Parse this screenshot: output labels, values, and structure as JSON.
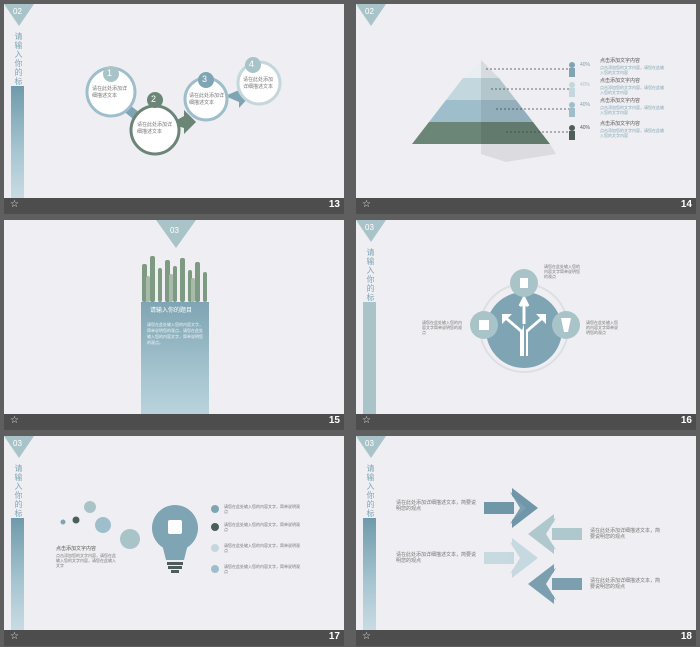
{
  "slides": [
    {
      "number": "13",
      "section": "02",
      "title": "请输入你的标题",
      "steps": [
        {
          "n": "1",
          "text": "请在此处添加详细描述文本"
        },
        {
          "n": "2",
          "text": "请在此处添加详细描述文本"
        },
        {
          "n": "3",
          "text": "请在此处添加详细描述文本"
        },
        {
          "n": "4",
          "text": "请在此处添加详细描述文本"
        }
      ]
    },
    {
      "number": "14",
      "section": "02",
      "title": "请输入你的标题",
      "levels": [
        {
          "pct": "40%",
          "heading": "点击添加文字内容",
          "desc": "点击添加您的文字内容，请您在此输入您的文字内容"
        },
        {
          "pct": "40%",
          "heading": "点击添加文字内容",
          "desc": "点击添加您的文字内容，请您在此输入您的文字内容"
        },
        {
          "pct": "40%",
          "heading": "点击添加文字内容",
          "desc": "点击添加您的文字内容，请您在此输入您的文字内容"
        },
        {
          "pct": "40%",
          "heading": "点击添加文字内容",
          "desc": "点击添加您的文字内容，请您在此输入您的文字内容"
        }
      ]
    },
    {
      "number": "15",
      "section": "03",
      "panel_title": "请输入你的题目",
      "panel_text": "请您在此处输入您的内容文字，简单说明您的观点，请您在此处输入您的内容文字，简单说明您的观点。"
    },
    {
      "number": "16",
      "section": "03",
      "title": "请输入你的标题",
      "text_right_top": "请您在此处输入您的内容文字简单说明您的观点",
      "text_left": "请您在此处输入您的内容文字简单说明您的观点",
      "text_right": "请您在此处输入您的内容文字简单说明您的观点"
    },
    {
      "number": "17",
      "section": "03",
      "title": "请输入你的标题",
      "left_heading": "点击添加文字内容",
      "left_text": "点击添加您的文字内容，请您在此输入您的文字内容，请您在此输入文字",
      "items": [
        "请您在此处输入您的内容文字，简单说明观点",
        "请您在此处输入您的内容文字，简单说明观点",
        "请您在此处输入您的内容文字，简单说明观点",
        "请您在此处输入您的内容文字，简单说明观点"
      ]
    },
    {
      "number": "18",
      "section": "03",
      "title": "请输入你的标题",
      "texts": [
        "请在此处添加详细描述文本，简要说明您的观点",
        "请在此处添加详细描述文本，简要说明您的观点",
        "请在此处添加详细描述文本，简要说明您的观点",
        "请在此处添加详细描述文本，简要说明您的观点"
      ]
    }
  ],
  "colors": {
    "accent": "#7fa4b3",
    "dark": "#6b8577",
    "light": "#a9c4c9",
    "bg": "#efeff3",
    "footer": "#4d4d4d"
  }
}
